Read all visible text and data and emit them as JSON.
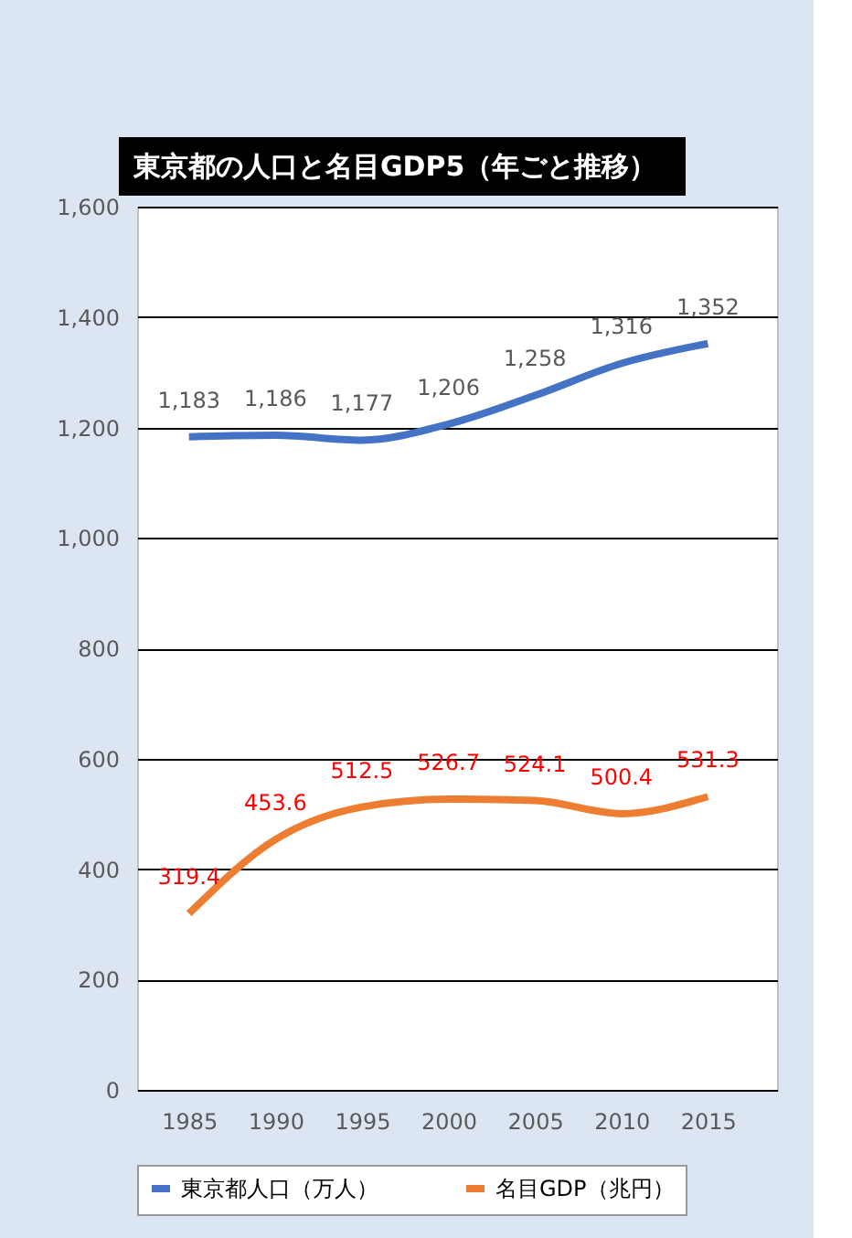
{
  "chart_data": {
    "type": "line",
    "title": "東京都の人口と名目GDP5（年ごと推移）",
    "categories": [
      "1985",
      "1990",
      "1995",
      "2000",
      "2005",
      "2010",
      "2015"
    ],
    "series": [
      {
        "name": "東京都人口（万人）",
        "color": "#4472c4",
        "values": [
          1183,
          1186,
          1177,
          1206,
          1258,
          1316,
          1352
        ],
        "value_labels": [
          "1,183",
          "1,186",
          "1,177",
          "1,206",
          "1,258",
          "1,316",
          "1,352"
        ]
      },
      {
        "name": "名目GDP（兆円）",
        "color": "#ed7d31",
        "values": [
          319.4,
          453.6,
          512.5,
          526.7,
          524.1,
          500.4,
          531.3
        ],
        "value_labels": [
          "319.4",
          "453.6",
          "512.5",
          "526.7",
          "524.1",
          "500.4",
          "531.3"
        ]
      }
    ],
    "ylim": [
      0,
      1600
    ],
    "yticks": [
      0,
      200,
      400,
      600,
      800,
      {
        "value": 1000,
        "label": "1,000"
      },
      {
        "value": 1200,
        "label": "1,200"
      },
      {
        "value": 1400,
        "label": "1,400"
      },
      {
        "value": 1600,
        "label": "1,600"
      }
    ],
    "grid": "y",
    "legend": "bottom",
    "marker": "none",
    "line_style": "solid"
  }
}
